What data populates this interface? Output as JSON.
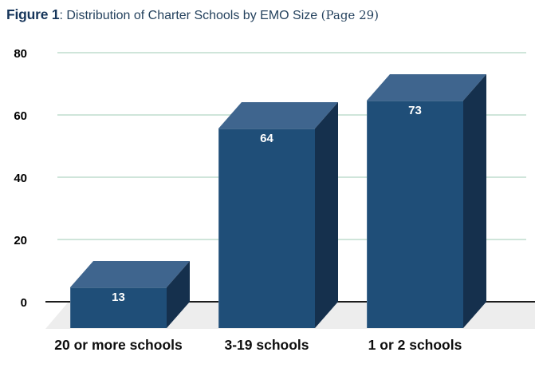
{
  "title": {
    "figure_label": "Figure 1",
    "main": ": Distribution of Charter Schools by EMO Size ",
    "page_ref": "(Page 29)"
  },
  "colors": {
    "bar_front": "#1f4e78",
    "bar_top": "#3f658e",
    "bar_side": "#15304d",
    "gridline": "#cfe5da",
    "axis_line": "#1c1c1c",
    "floor": "#ededed",
    "value_label": "#ffffff",
    "tick_label": "#000000",
    "x_label": "#0d0d0d",
    "title_text": "#25425e"
  },
  "chart_data": {
    "type": "bar",
    "style": "3d-column",
    "title": "Figure 1: Distribution of Charter Schools by EMO Size (Page 29)",
    "categories": [
      "20 or more schools",
      "3-19 schools",
      "1 or 2 schools"
    ],
    "values": [
      13,
      64,
      73
    ],
    "xlabel": "",
    "ylabel": "",
    "ylim": [
      0,
      80
    ],
    "yticks": [
      0,
      20,
      40,
      60,
      80
    ],
    "grid": true,
    "legend": "none"
  }
}
